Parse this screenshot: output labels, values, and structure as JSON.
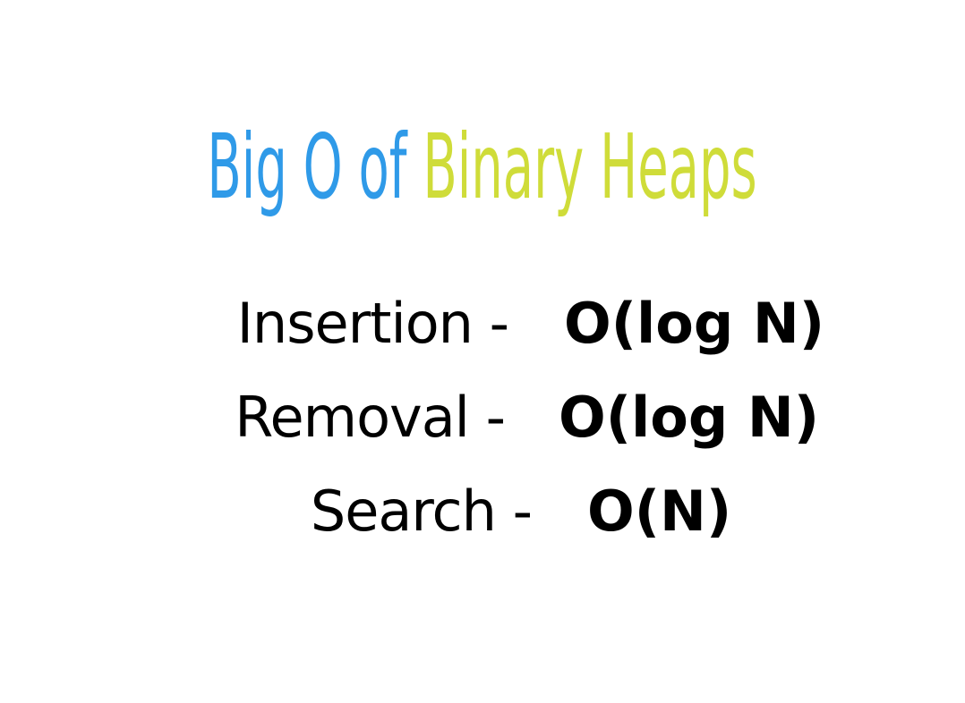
{
  "title": {
    "part_blue": "Big O of ",
    "part_green": "Binary Heaps"
  },
  "colors": {
    "title_blue": "#2f9ae8",
    "title_green": "#cfdc39",
    "text": "#000000",
    "background": "#ffffff"
  },
  "rows": [
    {
      "operation": "Insertion -",
      "complexity": "O(log N)"
    },
    {
      "operation": "Removal -",
      "complexity": "O(log N)"
    },
    {
      "operation": "Search -",
      "complexity": "O(N)"
    }
  ]
}
